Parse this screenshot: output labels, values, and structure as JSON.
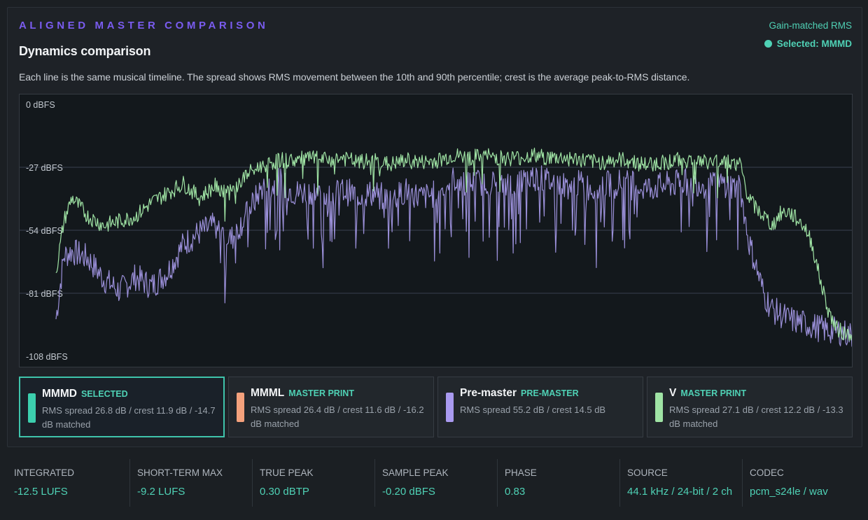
{
  "header": {
    "eyebrow": "ALIGNED MASTER COMPARISON",
    "title": "Dynamics comparison",
    "gain_label": "Gain-matched RMS",
    "selected_label": "Selected: MMMD",
    "description": "Each line is the same musical timeline. The spread shows RMS movement between the 10th and 90th percentile; crest is the average peak-to-RMS distance."
  },
  "chart_data": {
    "type": "line",
    "title": "",
    "xlabel": "",
    "ylabel": "",
    "y_ticks": [
      "0 dBFS",
      "-27 dBFS",
      "-54 dBFS",
      "-81 dBFS",
      "-108 dBFS"
    ],
    "y_tick_values": [
      0,
      -27,
      -54,
      -81,
      -108
    ],
    "ylim": [
      -108,
      0
    ],
    "xlim": [
      0,
      1
    ],
    "grid": true,
    "series": [
      {
        "name": "MMMD",
        "color": "#9a8fd8",
        "x": [
          0,
          0.01,
          0.02,
          0.04,
          0.06,
          0.08,
          0.1,
          0.12,
          0.14,
          0.16,
          0.18,
          0.2,
          0.22,
          0.24,
          0.26,
          0.27,
          0.28,
          0.3,
          0.32,
          0.34,
          0.36,
          0.38,
          0.4,
          0.42,
          0.44,
          0.46,
          0.48,
          0.5,
          0.52,
          0.54,
          0.56,
          0.58,
          0.6,
          0.62,
          0.64,
          0.66,
          0.68,
          0.7,
          0.72,
          0.74,
          0.76,
          0.78,
          0.8,
          0.82,
          0.84,
          0.86,
          0.87,
          0.88,
          0.89,
          0.9,
          0.91,
          0.92,
          0.94,
          0.95,
          0.96,
          0.97,
          0.98,
          0.99,
          1.0
        ],
        "values": [
          -92,
          -65,
          -63,
          -66,
          -75,
          -80,
          -74,
          -78,
          -72,
          -60,
          -55,
          -52,
          -58,
          -47,
          -35,
          -36,
          -33,
          -38,
          -37,
          -40,
          -37,
          -39,
          -38,
          -41,
          -37,
          -40,
          -38,
          -32,
          -34,
          -33,
          -35,
          -34,
          -31,
          -33,
          -35,
          -34,
          -37,
          -33,
          -34,
          -36,
          -35,
          -34,
          -33,
          -35,
          -34,
          -36,
          -58,
          -70,
          -82,
          -88,
          -90,
          -92,
          -94,
          -95,
          -96,
          -97,
          -97,
          -98,
          -99
        ]
      },
      {
        "name": "V",
        "color": "#9fe3a4",
        "x": [
          0,
          0.01,
          0.02,
          0.04,
          0.06,
          0.08,
          0.1,
          0.12,
          0.14,
          0.16,
          0.18,
          0.2,
          0.22,
          0.24,
          0.26,
          0.27,
          0.28,
          0.3,
          0.32,
          0.34,
          0.36,
          0.38,
          0.4,
          0.42,
          0.44,
          0.46,
          0.48,
          0.5,
          0.52,
          0.54,
          0.56,
          0.58,
          0.6,
          0.62,
          0.64,
          0.66,
          0.68,
          0.7,
          0.72,
          0.74,
          0.76,
          0.78,
          0.8,
          0.82,
          0.84,
          0.86,
          0.87,
          0.88,
          0.89,
          0.9,
          0.91,
          0.92,
          0.94,
          0.95,
          0.96,
          0.97,
          0.98,
          0.99,
          1.0
        ],
        "values": [
          -72,
          -50,
          -40,
          -48,
          -52,
          -50,
          -48,
          -42,
          -38,
          -34,
          -40,
          -35,
          -38,
          -30,
          -26,
          -25,
          -24,
          -24,
          -23,
          -24,
          -23,
          -25,
          -24,
          -26,
          -24,
          -25,
          -24,
          -22,
          -23,
          -22,
          -23,
          -23,
          -22,
          -23,
          -23,
          -24,
          -25,
          -24,
          -24,
          -26,
          -25,
          -24,
          -24,
          -25,
          -24,
          -26,
          -40,
          -45,
          -48,
          -52,
          -47,
          -46,
          -52,
          -60,
          -75,
          -88,
          -96,
          -98,
          -98
        ]
      }
    ]
  },
  "cards": [
    {
      "name": "MMMD",
      "tag": "SELECTED",
      "color": "#3ccfae",
      "detail": "RMS spread 26.8 dB / crest 11.9 dB / -14.7 dB matched",
      "selected": true
    },
    {
      "name": "MMML",
      "tag": "MASTER PRINT",
      "color": "#f4a17c",
      "detail": "RMS spread 26.4 dB / crest 11.6 dB / -16.2 dB matched",
      "selected": false
    },
    {
      "name": "Pre-master",
      "tag": "PRE-MASTER",
      "color": "#a99af0",
      "detail": "RMS spread 55.2 dB / crest 14.5 dB",
      "selected": false
    },
    {
      "name": "V",
      "tag": "MASTER PRINT",
      "color": "#9fe3a4",
      "detail": "RMS spread 27.1 dB / crest 12.2 dB / -13.3 dB matched",
      "selected": false
    }
  ],
  "stats": [
    {
      "label": "INTEGRATED",
      "value": "-12.5 LUFS"
    },
    {
      "label": "SHORT-TERM MAX",
      "value": "-9.2 LUFS"
    },
    {
      "label": "TRUE PEAK",
      "value": "0.30 dBTP"
    },
    {
      "label": "SAMPLE PEAK",
      "value": "-0.20 dBFS"
    },
    {
      "label": "PHASE",
      "value": "0.83"
    },
    {
      "label": "SOURCE",
      "value": "44.1 kHz / 24-bit / 2 ch"
    },
    {
      "label": "CODEC",
      "value": "pcm_s24le / wav"
    }
  ]
}
